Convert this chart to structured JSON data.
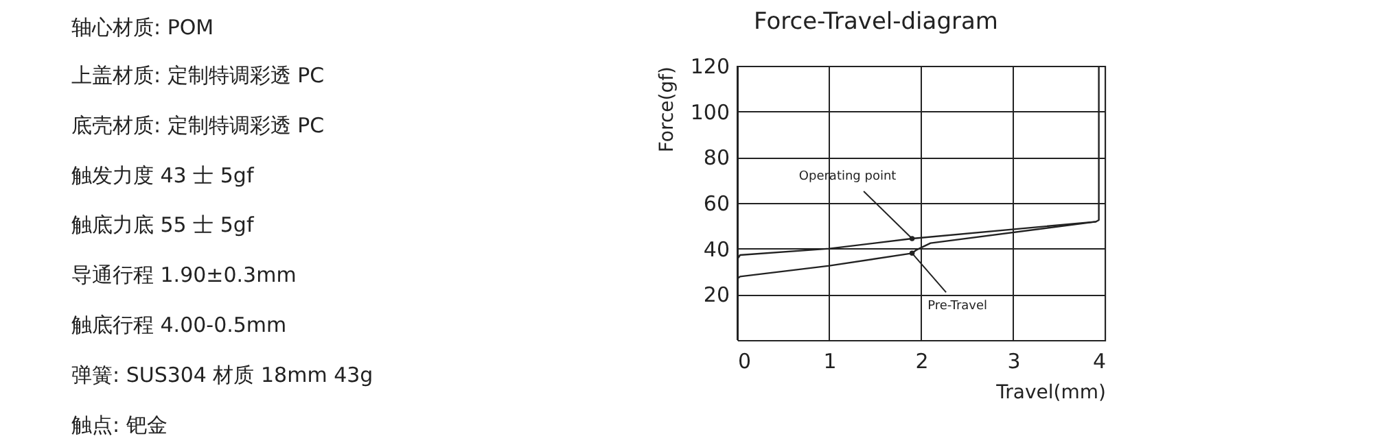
{
  "chart_data": [
    {
      "type": "other",
      "annotations": [
        "轴心材质: POM",
        "上盖材质:  定制特调彩透 PC",
        "底壳材质:  定制特调彩透 PC",
        "触发力度  43 士 5gf",
        "触底力底  55 士 5gf",
        "导通行程  1.90±0.3mm",
        "触底行程  4.00-0.5mm",
        "弹簧: SUS304 材质 18mm 43g",
        "触点:  钯金"
      ]
    },
    {
      "type": "line",
      "title": "Force-Travel-diagram",
      "xlabel": "Travel(mm)",
      "ylabel": "Force(gf)",
      "xlim": [
        0,
        4
      ],
      "xticks": [
        0,
        1,
        2,
        3,
        4
      ],
      "ylim": [
        0,
        120
      ],
      "yticks": [
        20,
        40,
        60,
        80,
        100,
        120
      ],
      "grid": true,
      "legend": false,
      "marker": "none",
      "line_style": "solid",
      "series": [
        {
          "color": "#222222",
          "x": [
            0,
            0.03,
            1,
            1.9,
            3.9,
            3.93,
            3.93
          ],
          "values": [
            35.4,
            37.2,
            40,
            44.4,
            51.8,
            52.5,
            120
          ]
        },
        {
          "color": "#222222",
          "x": [
            0,
            0.03,
            1,
            1.9,
            1.95,
            2.1,
            3.9
          ],
          "values": [
            26.8,
            27.8,
            32.5,
            38,
            39.5,
            42.4,
            51.8
          ]
        }
      ],
      "annotations": [
        {
          "text": "Operating point",
          "x": 1.9,
          "y": 44.4
        },
        {
          "text": "Pre-Travel",
          "x": 1.9,
          "y": 38
        }
      ]
    }
  ]
}
